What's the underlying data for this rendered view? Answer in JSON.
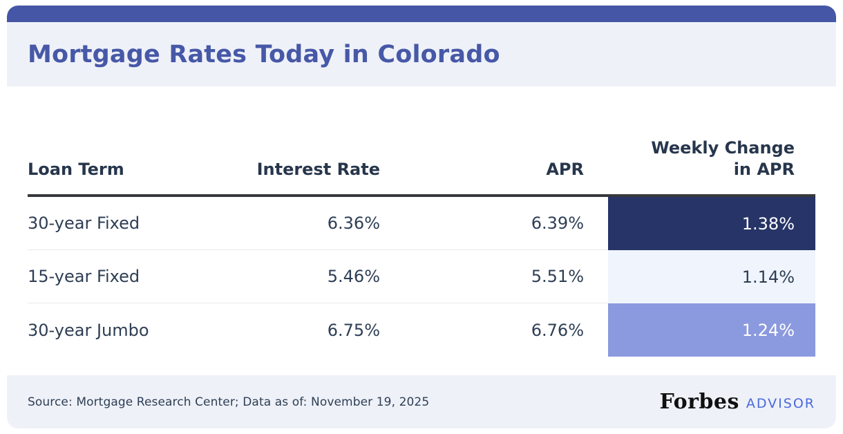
{
  "header": {
    "title": "Mortgage Rates Today in Colorado"
  },
  "table": {
    "headers": {
      "loan_term": "Loan Term",
      "interest_rate": "Interest Rate",
      "apr": "APR",
      "weekly_change": "Weekly Change\nin APR"
    },
    "rows": [
      {
        "loan_term": "30-year Fixed",
        "interest_rate": "6.36%",
        "apr": "6.39%",
        "weekly_change": "1.38%",
        "weekly_bg": "#263467",
        "weekly_color": "#ffffff"
      },
      {
        "loan_term": "15-year Fixed",
        "interest_rate": "5.46%",
        "apr": "5.51%",
        "weekly_change": "1.14%",
        "weekly_bg": "#f0f4fc",
        "weekly_color": "#2e3e54"
      },
      {
        "loan_term": "30-year Jumbo",
        "interest_rate": "6.75%",
        "apr": "6.76%",
        "weekly_change": "1.24%",
        "weekly_bg": "#8b99de",
        "weekly_color": "#ffffff"
      }
    ]
  },
  "footer": {
    "source": "Source: Mortgage Research Center; Data as of: November 19, 2025",
    "brand": "Forbes",
    "brand_suffix": "ADVISOR"
  },
  "colors": {
    "top_bar": "#4556a6",
    "band_bg": "#eef1f8",
    "title_text": "#4758a7",
    "header_text": "#27364c",
    "body_text": "#2e3e54",
    "header_border": "#36383c",
    "row_divider": "#e9e9ec",
    "advisor_blue": "#4a68dd",
    "cell_dark_navy": "#263467",
    "cell_light": "#f0f4fc",
    "cell_periwinkle": "#8b99de"
  },
  "chart_data": {
    "type": "table",
    "title": "Mortgage Rates Today in Colorado",
    "columns": [
      "Loan Term",
      "Interest Rate",
      "APR",
      "Weekly Change in APR"
    ],
    "rows": [
      [
        "30-year Fixed",
        "6.36%",
        "6.39%",
        "1.38%"
      ],
      [
        "15-year Fixed",
        "5.46%",
        "5.51%",
        "1.14%"
      ],
      [
        "30-year Jumbo",
        "6.75%",
        "6.76%",
        "1.24%"
      ]
    ],
    "numeric": {
      "interest_rate_pct": [
        6.36,
        5.46,
        6.75
      ],
      "apr_pct": [
        6.39,
        5.51,
        6.76
      ],
      "weekly_change_in_apr_pct": [
        1.38,
        1.14,
        1.24
      ]
    },
    "highlight_column": "Weekly Change in APR",
    "source": "Mortgage Research Center",
    "data_as_of": "November 19, 2025"
  }
}
